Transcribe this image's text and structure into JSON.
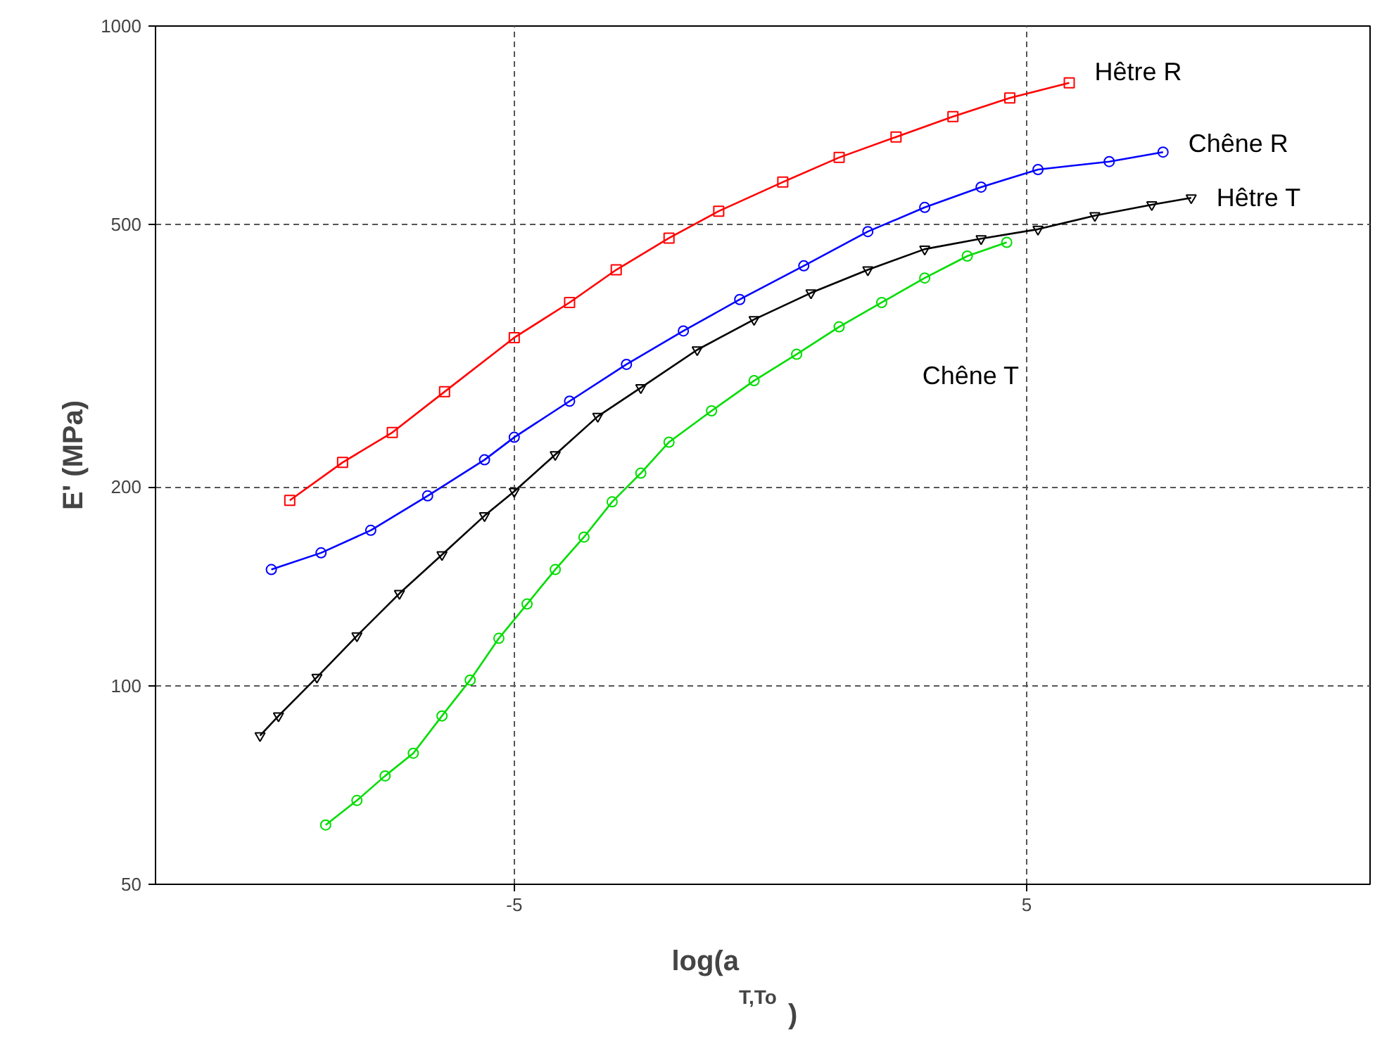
{
  "chart_data": {
    "type": "line",
    "xlabel": "log(a$_{T,To}$)",
    "ylabel": "E' (MPa)",
    "log": "y",
    "xlim": [
      -12,
      11.7
    ],
    "ylim": [
      50,
      1000
    ],
    "xticks": [
      -5,
      5
    ],
    "yticks": [
      50,
      100,
      200,
      500,
      1000
    ],
    "grid": true,
    "line_style": "solid",
    "series": [
      {
        "name": "Hêtre R",
        "color": "#ff0000",
        "marker": "square",
        "x": [
          -9.38,
          -8.35,
          -7.38,
          -6.36,
          -5,
          -3.92,
          -3.01,
          -1.98,
          -1.01,
          0.24,
          1.34,
          2.45,
          3.56,
          4.67,
          5.83
        ],
        "values": [
          191,
          218,
          242,
          279,
          337,
          381,
          427,
          477,
          524,
          580,
          632,
          679,
          729,
          778,
          820
        ]
      },
      {
        "name": "Chêne R",
        "color": "#0000ff",
        "marker": "circle",
        "x": [
          -9.74,
          -8.77,
          -7.8,
          -6.69,
          -5.58,
          -5,
          -3.92,
          -2.81,
          -1.7,
          -0.6,
          0.65,
          1.9,
          3.01,
          4.11,
          5.22,
          6.61,
          7.66
        ],
        "values": [
          150,
          159,
          172,
          194,
          220,
          238,
          270,
          307,
          345,
          385,
          433,
          488,
          531,
          570,
          606,
          623,
          644
        ]
      },
      {
        "name": "Hêtre T",
        "color": "#000000",
        "marker": "triangle",
        "x": [
          -9.96,
          -9.6,
          -8.85,
          -8.07,
          -7.24,
          -6.41,
          -5.58,
          -5,
          -4.2,
          -3.37,
          -2.53,
          -1.43,
          -0.32,
          0.79,
          1.9,
          3.01,
          4.11,
          5.22,
          6.33,
          7.44,
          8.21
        ],
        "values": [
          84,
          90,
          103,
          119,
          138,
          158,
          181,
          197,
          224,
          256,
          283,
          323,
          359,
          394,
          427,
          459,
          476,
          492,
          516,
          536,
          549
        ]
      },
      {
        "name": "Chêne T",
        "color": "#00dd00",
        "marker": "circle",
        "x": [
          -8.68,
          -8.07,
          -7.52,
          -6.97,
          -6.41,
          -5.86,
          -5.3,
          -4.75,
          -4.2,
          -3.64,
          -3.09,
          -2.53,
          -1.98,
          -1.15,
          -0.32,
          0.51,
          1.34,
          2.17,
          3.01,
          3.84,
          4.61
        ],
        "values": [
          61.5,
          67,
          73,
          79,
          90,
          102,
          118,
          133,
          150,
          168,
          190,
          210,
          234,
          261,
          290,
          318,
          350,
          381,
          415,
          448,
          470
        ]
      }
    ]
  }
}
